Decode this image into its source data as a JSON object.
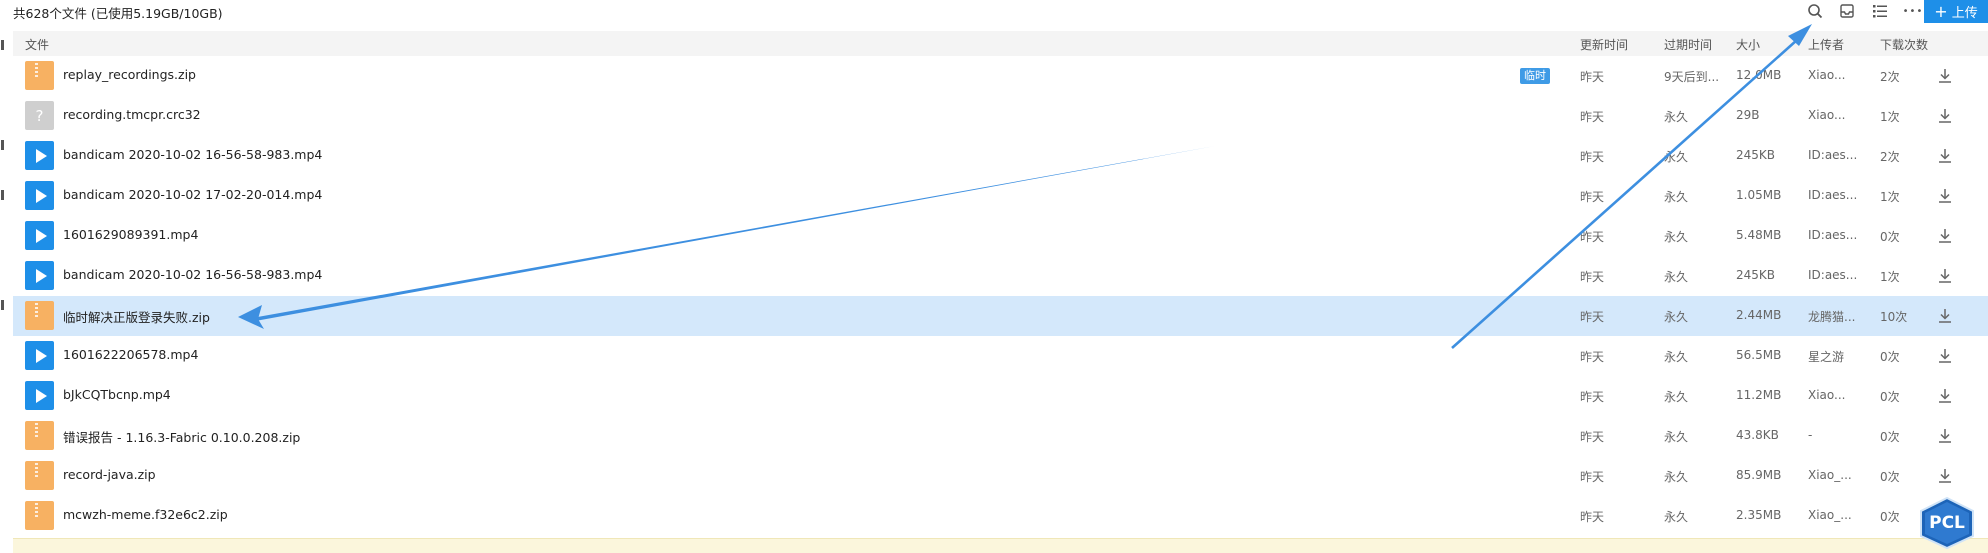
{
  "summary": "共628个文件 (已使用5.19GB/10GB)",
  "toolbar": {
    "search_icon": "search-icon",
    "inbox_icon": "inbox-icon",
    "list_icon": "list-view-icon",
    "more_icon": "more-icon",
    "more_glyph": "•••",
    "upload_plus": "+",
    "upload_label": "上传",
    "accent": "#1e8fe8"
  },
  "columns": {
    "file": "文件",
    "updated": "更新时间",
    "expire": "过期时间",
    "size": "大小",
    "uploader": "上传者",
    "downloads": "下载次数"
  },
  "files": [
    {
      "name": "replay_recordings.zip",
      "type": "zip",
      "badge": "临时",
      "updated": "昨天",
      "expire": "9天后到...",
      "size": "12.0MB",
      "uploader": "Xiao...",
      "downloads": "2次"
    },
    {
      "name": "recording.tmcpr.crc32",
      "type": "unknown",
      "updated": "昨天",
      "expire": "永久",
      "size": "29B",
      "uploader": "Xiao...",
      "downloads": "1次"
    },
    {
      "name": "bandicam 2020-10-02 16-56-58-983.mp4",
      "type": "video",
      "updated": "昨天",
      "expire": "永久",
      "size": "245KB",
      "uploader": "ID:aes...",
      "downloads": "2次"
    },
    {
      "name": "bandicam 2020-10-02 17-02-20-014.mp4",
      "type": "video",
      "updated": "昨天",
      "expire": "永久",
      "size": "1.05MB",
      "uploader": "ID:aes...",
      "downloads": "1次"
    },
    {
      "name": "1601629089391.mp4",
      "type": "video",
      "updated": "昨天",
      "expire": "永久",
      "size": "5.48MB",
      "uploader": "ID:aes...",
      "downloads": "0次"
    },
    {
      "name": "bandicam 2020-10-02 16-56-58-983.mp4",
      "type": "video",
      "updated": "昨天",
      "expire": "永久",
      "size": "245KB",
      "uploader": "ID:aes...",
      "downloads": "1次"
    },
    {
      "name": "临时解决正版登录失败.zip",
      "type": "zip",
      "selected": true,
      "updated": "昨天",
      "expire": "永久",
      "size": "2.44MB",
      "uploader": "龙腾猫...",
      "downloads": "10次"
    },
    {
      "name": "1601622206578.mp4",
      "type": "video",
      "updated": "昨天",
      "expire": "永久",
      "size": "56.5MB",
      "uploader": "星之游",
      "downloads": "0次"
    },
    {
      "name": "bJkCQTbcnp.mp4",
      "type": "video",
      "updated": "昨天",
      "expire": "永久",
      "size": "11.2MB",
      "uploader": "Xiao...",
      "downloads": "0次"
    },
    {
      "name": "错误报告 - 1.16.3-Fabric 0.10.0.208.zip",
      "type": "zip",
      "updated": "昨天",
      "expire": "永久",
      "size": "43.8KB",
      "uploader": "-",
      "downloads": "0次"
    },
    {
      "name": "record-java.zip",
      "type": "zip",
      "updated": "昨天",
      "expire": "永久",
      "size": "85.9MB",
      "uploader": "Xiao_...",
      "downloads": "0次"
    },
    {
      "name": "mcwzh-meme.f32e6c2.zip",
      "type": "zip",
      "updated": "昨天",
      "expire": "永久",
      "size": "2.35MB",
      "uploader": "Xiao_...",
      "downloads": "0次"
    }
  ],
  "pcl_logo": "PCL",
  "annotation_color": "#3d8fe0"
}
